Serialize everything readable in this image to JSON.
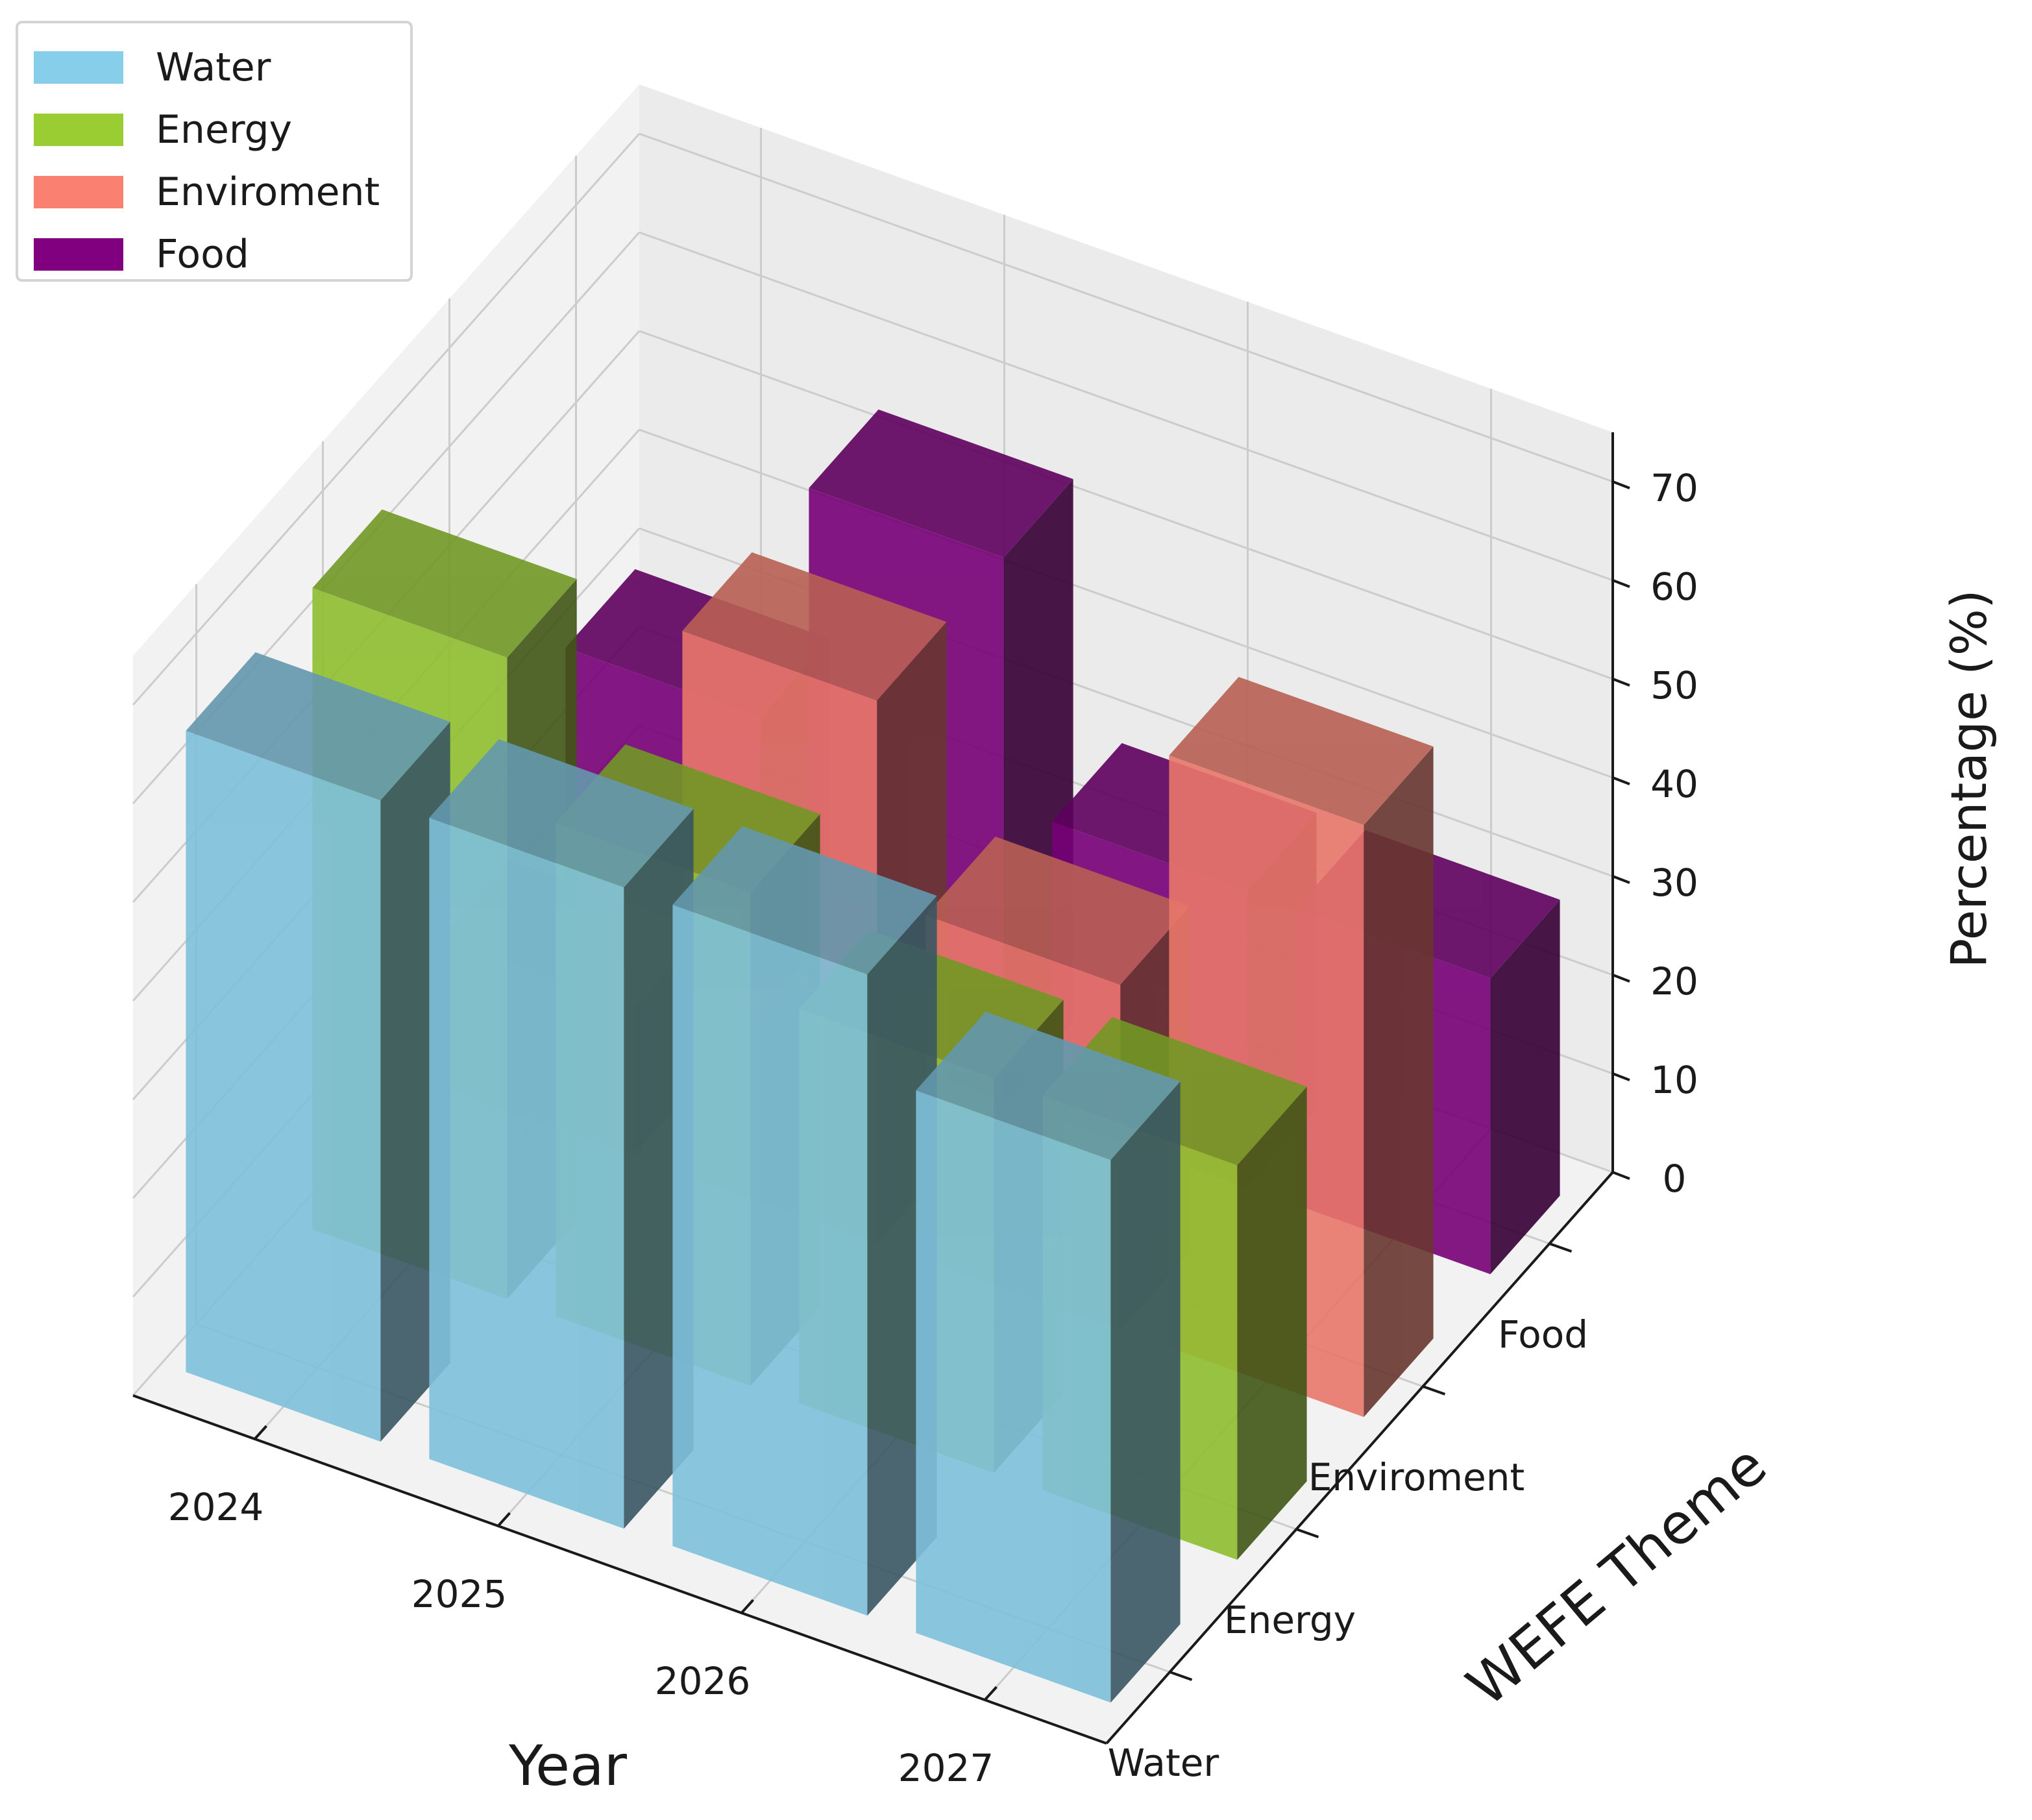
{
  "chart_data": {
    "type": "bar",
    "dimension": "3d",
    "xlabel": "Year",
    "ylabel": "WEFE Theme",
    "zlabel": "Percentage (%)",
    "x_categories": [
      "2024",
      "2025",
      "2026",
      "2027"
    ],
    "y_categories": [
      "Water",
      "Energy",
      "Enviroment",
      "Food"
    ],
    "zlim": [
      0,
      75
    ],
    "z_ticks": [
      "0",
      "10",
      "20",
      "30",
      "40",
      "50",
      "60",
      "70"
    ],
    "legend_position": "top-left",
    "grid": true,
    "series": [
      {
        "name": "Water",
        "color": "#87ceeb",
        "values": [
          65,
          65,
          65,
          55
        ]
      },
      {
        "name": "Energy",
        "color": "#9acd32",
        "values": [
          65,
          50,
          40,
          40
        ]
      },
      {
        "name": "Enviroment",
        "color": "#fa8072",
        "values": [
          15,
          55,
          35,
          60
        ]
      },
      {
        "name": "Food",
        "color": "#800080",
        "values": [
          30,
          55,
          30,
          30
        ]
      }
    ]
  }
}
